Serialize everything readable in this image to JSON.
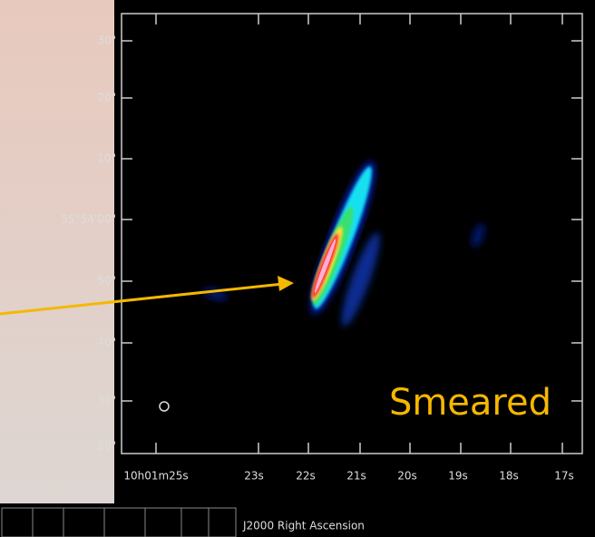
{
  "image": {
    "y_labels": [
      "30\"",
      "20\"",
      "10\"",
      "55°54'00\"",
      "50\"",
      "40\"",
      "30\"",
      "20\""
    ],
    "x_labels": [
      "10h01m25s",
      "23s",
      "22s",
      "21s",
      "20s",
      "19s",
      "18s",
      "17s"
    ],
    "x_axis_title": "J2000 Right Ascension",
    "annotation": "Smeared"
  }
}
